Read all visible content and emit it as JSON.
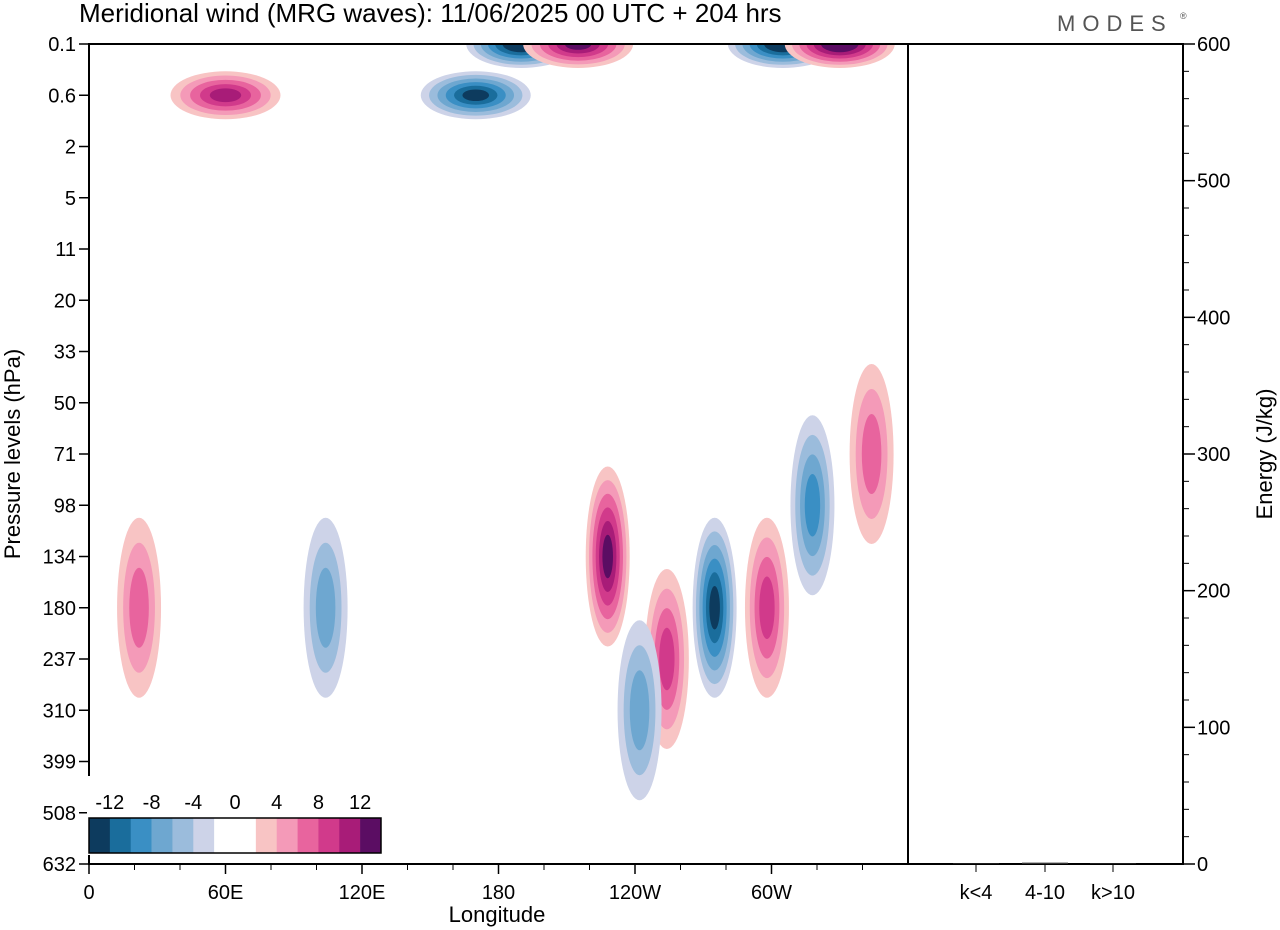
{
  "title": "Meridional wind (MRG waves):  11/06/2025  00 UTC  + 204 hrs",
  "brand": "MODES",
  "brand_mark": "®",
  "chart_data": [
    {
      "type": "heatmap",
      "xlabel": "Longitude",
      "ylabel": "Pressure levels (hPa)",
      "x_ticks": [
        "0",
        "60E",
        "120E",
        "180",
        "120W",
        "60W"
      ],
      "y_ticks": [
        "0.1",
        "0.6",
        "2",
        "5",
        "11",
        "20",
        "33",
        "50",
        "71",
        "98",
        "134",
        "180",
        "237",
        "310",
        "399",
        "508",
        "632"
      ],
      "colorbar": {
        "labels": [
          "-12",
          "-8",
          "-4",
          "0",
          "4",
          "8",
          "12"
        ],
        "colors": [
          "#0d3b5e",
          "#1a6d9c",
          "#3a8fc4",
          "#6ea7d0",
          "#9bbcdc",
          "#cdd3e8",
          "#ffffff",
          "#ffffff",
          "#f8c4c4",
          "#f49ab8",
          "#e8649e",
          "#d13a8b",
          "#a81c78",
          "#5b0d63"
        ]
      },
      "features": [
        {
          "lon": 190,
          "level": "0.1",
          "value": -14
        },
        {
          "lon": 305,
          "level": "0.1",
          "value": -14
        },
        {
          "lon": 215,
          "level": "0.1",
          "value": 13
        },
        {
          "lon": 330,
          "level": "0.1",
          "value": 14
        },
        {
          "lon": 170,
          "level": "0.6",
          "value": -12
        },
        {
          "lon": 60,
          "level": "0.6",
          "value": 10
        },
        {
          "lon": 228,
          "level": "134",
          "value": 13
        },
        {
          "lon": 275,
          "level": "180",
          "value": -12
        },
        {
          "lon": 298,
          "level": "180",
          "value": 9
        },
        {
          "lon": 104,
          "level": "180",
          "value": -7
        },
        {
          "lon": 22,
          "level": "180",
          "value": 6
        },
        {
          "lon": 254,
          "level": "237",
          "value": 8
        },
        {
          "lon": 318,
          "level": "98",
          "value": -8
        },
        {
          "lon": 344,
          "level": "71",
          "value": 7
        },
        {
          "lon": 242,
          "level": "310",
          "value": -7
        }
      ]
    },
    {
      "type": "bar",
      "categories": [
        "k<4",
        "4-10",
        "k>10"
      ],
      "values": [
        0,
        1,
        0
      ],
      "ylabel": "Energy (J/kg)",
      "ylim": [
        0,
        600
      ],
      "y_ticks": [
        "0",
        "100",
        "200",
        "300",
        "400",
        "500",
        "600"
      ]
    }
  ]
}
